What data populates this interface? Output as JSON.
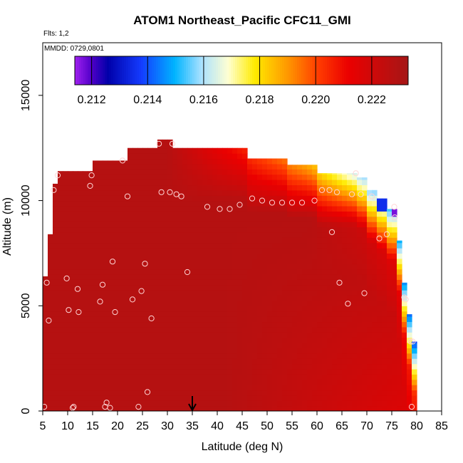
{
  "chart_data": {
    "type": "heatmap",
    "title": "ATOM1 Northeast_Pacific CFC11_GMI",
    "subtitle_flights": "Flts: 1,2",
    "subtitle_dates": "MMDD: 0729,0801",
    "xlabel": "Latitude (deg N)",
    "ylabel": "Altitude (m)",
    "xlim": [
      5,
      85
    ],
    "ylim": [
      0,
      17500
    ],
    "x_ticks": [
      "5",
      "10",
      "15",
      "20",
      "25",
      "30",
      "35",
      "40",
      "45",
      "50",
      "55",
      "60",
      "65",
      "70",
      "75",
      "80",
      "85"
    ],
    "y_ticks": [
      "0",
      "5000",
      "10000",
      "15000"
    ],
    "colorbar": {
      "min": 0.2114,
      "max": 0.2233,
      "tick_labels": [
        "0.212",
        "0.214",
        "0.216",
        "0.218",
        "0.220",
        "0.222"
      ],
      "tick_values": [
        0.212,
        0.214,
        0.216,
        0.218,
        0.22,
        0.222
      ]
    },
    "column_profile": [
      {
        "lat": 5,
        "top": 6400
      },
      {
        "lat": 6,
        "top": 8400
      },
      {
        "lat": 7,
        "top": 10800
      },
      {
        "lat": 8,
        "top": 11400
      },
      {
        "lat": 14,
        "top": 11400
      },
      {
        "lat": 15,
        "top": 11900
      },
      {
        "lat": 22,
        "top": 12500
      },
      {
        "lat": 28,
        "top": 12900
      },
      {
        "lat": 31,
        "top": 12500
      },
      {
        "lat": 46,
        "top": 12000
      },
      {
        "lat": 54,
        "top": 11700
      },
      {
        "lat": 60,
        "top": 11300
      },
      {
        "lat": 66,
        "top": 11300
      },
      {
        "lat": 68,
        "top": 11100
      },
      {
        "lat": 70,
        "top": 10500
      },
      {
        "lat": 72,
        "top": 10100
      },
      {
        "lat": 74,
        "top": 9600
      },
      {
        "lat": 76,
        "top": 8100
      },
      {
        "lat": 77,
        "top": 6100
      },
      {
        "lat": 78,
        "top": 4600
      },
      {
        "lat": 79,
        "top": 3300
      }
    ],
    "points": [
      {
        "lat": 5.3,
        "alt": 200
      },
      {
        "lat": 5.8,
        "alt": 6100
      },
      {
        "lat": 6.2,
        "alt": 4300
      },
      {
        "lat": 7.2,
        "alt": 10500
      },
      {
        "lat": 8,
        "alt": 11200
      },
      {
        "lat": 9.8,
        "alt": 6300
      },
      {
        "lat": 10.2,
        "alt": 4800
      },
      {
        "lat": 11,
        "alt": 150
      },
      {
        "lat": 11.2,
        "alt": 200
      },
      {
        "lat": 12,
        "alt": 5800
      },
      {
        "lat": 12.2,
        "alt": 4700
      },
      {
        "lat": 14.5,
        "alt": 10700
      },
      {
        "lat": 14.8,
        "alt": 11200
      },
      {
        "lat": 16.5,
        "alt": 5200
      },
      {
        "lat": 17,
        "alt": 6000
      },
      {
        "lat": 17.5,
        "alt": 200
      },
      {
        "lat": 17.8,
        "alt": 400
      },
      {
        "lat": 18.5,
        "alt": 150
      },
      {
        "lat": 19,
        "alt": 7100
      },
      {
        "lat": 19.5,
        "alt": 4700
      },
      {
        "lat": 21,
        "alt": 11900
      },
      {
        "lat": 22,
        "alt": 10200
      },
      {
        "lat": 23,
        "alt": 5300
      },
      {
        "lat": 24.2,
        "alt": 200
      },
      {
        "lat": 24.8,
        "alt": 5700
      },
      {
        "lat": 25.5,
        "alt": 7000
      },
      {
        "lat": 26,
        "alt": 900
      },
      {
        "lat": 26.8,
        "alt": 4400
      },
      {
        "lat": 28.3,
        "alt": 12700
      },
      {
        "lat": 28.8,
        "alt": 10400
      },
      {
        "lat": 30.5,
        "alt": 10400
      },
      {
        "lat": 31,
        "alt": 12700
      },
      {
        "lat": 31.8,
        "alt": 10300
      },
      {
        "lat": 32.8,
        "alt": 10200
      },
      {
        "lat": 34,
        "alt": 6600
      },
      {
        "lat": 38,
        "alt": 9700
      },
      {
        "lat": 40.5,
        "alt": 9600
      },
      {
        "lat": 42.5,
        "alt": 9600
      },
      {
        "lat": 44.5,
        "alt": 9800
      },
      {
        "lat": 47,
        "alt": 10100
      },
      {
        "lat": 49,
        "alt": 10000
      },
      {
        "lat": 51,
        "alt": 9900
      },
      {
        "lat": 53,
        "alt": 9900
      },
      {
        "lat": 55,
        "alt": 9900
      },
      {
        "lat": 57,
        "alt": 9900
      },
      {
        "lat": 59.5,
        "alt": 10000
      },
      {
        "lat": 61,
        "alt": 10500
      },
      {
        "lat": 62.5,
        "alt": 10500
      },
      {
        "lat": 63,
        "alt": 8500
      },
      {
        "lat": 64,
        "alt": 10400
      },
      {
        "lat": 64.5,
        "alt": 6100
      },
      {
        "lat": 66.2,
        "alt": 5100
      },
      {
        "lat": 67,
        "alt": 10300
      },
      {
        "lat": 67.8,
        "alt": 11300
      },
      {
        "lat": 68.8,
        "alt": 10300
      },
      {
        "lat": 69.5,
        "alt": 5600
      },
      {
        "lat": 71,
        "alt": 10200
      },
      {
        "lat": 72.5,
        "alt": 8200
      },
      {
        "lat": 74,
        "alt": 8400
      },
      {
        "lat": 75.5,
        "alt": 9700
      },
      {
        "lat": 75.6,
        "alt": 9200
      },
      {
        "lat": 77.5,
        "alt": 5400
      },
      {
        "lat": 77.8,
        "alt": 5300
      },
      {
        "lat": 78.8,
        "alt": 3300
      },
      {
        "lat": 79.2,
        "alt": 3300
      },
      {
        "lat": 79,
        "alt": 200
      }
    ],
    "marker_arrow_lat": 35
  }
}
